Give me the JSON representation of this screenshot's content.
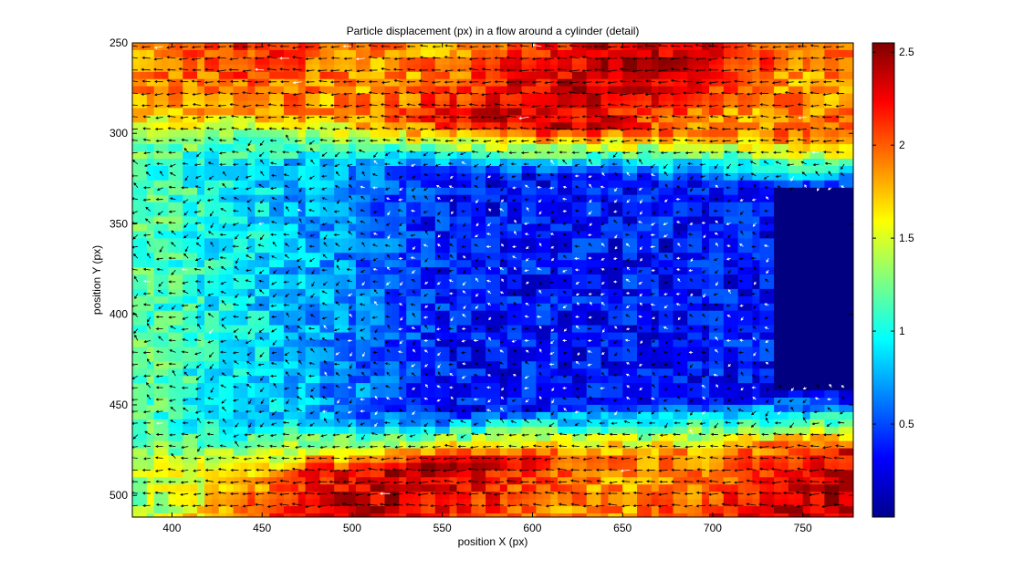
{
  "chart_data": {
    "type": "heatmap",
    "title": "Particle displacement (px) in a flow around a cylinder (detail)",
    "xlabel": "position X (px)",
    "ylabel": "position Y (px)",
    "xlim": [
      378,
      778
    ],
    "ylim": [
      250,
      512
    ],
    "y_reversed": true,
    "x_ticks": [
      400,
      450,
      500,
      550,
      600,
      650,
      700,
      750
    ],
    "y_ticks": [
      250,
      300,
      350,
      400,
      450,
      500
    ],
    "colorbar": {
      "colormap": "jet",
      "range": [
        0,
        2.55
      ],
      "ticks": [
        "0.5",
        "1",
        "1.5",
        "2",
        "2.5"
      ],
      "tick_values": [
        0.5,
        1,
        1.5,
        2,
        2.5
      ],
      "colors": [
        "#00008f",
        "#0000ff",
        "#00ffff",
        "#ffff00",
        "#ff0000",
        "#800000"
      ]
    },
    "overlay": "quiver",
    "flow_direction": "right-to-left",
    "cylinder": {
      "x_range": [
        735,
        778
      ],
      "y_range": [
        332,
        440
      ],
      "value": 0
    },
    "field_regions": [
      {
        "name": "upper free stream",
        "x_range": [
          378,
          778
        ],
        "y_range": [
          250,
          320
        ],
        "value": 2.1
      },
      {
        "name": "lower free stream",
        "x_range": [
          378,
          778
        ],
        "y_range": [
          455,
          512
        ],
        "value": 2.1
      },
      {
        "name": "near wake",
        "x_range": [
          520,
          735
        ],
        "y_range": [
          325,
          445
        ],
        "value": 0.4
      },
      {
        "name": "far wake",
        "x_range": [
          378,
          520
        ],
        "y_range": [
          330,
          460
        ],
        "value": 1.1
      }
    ]
  }
}
